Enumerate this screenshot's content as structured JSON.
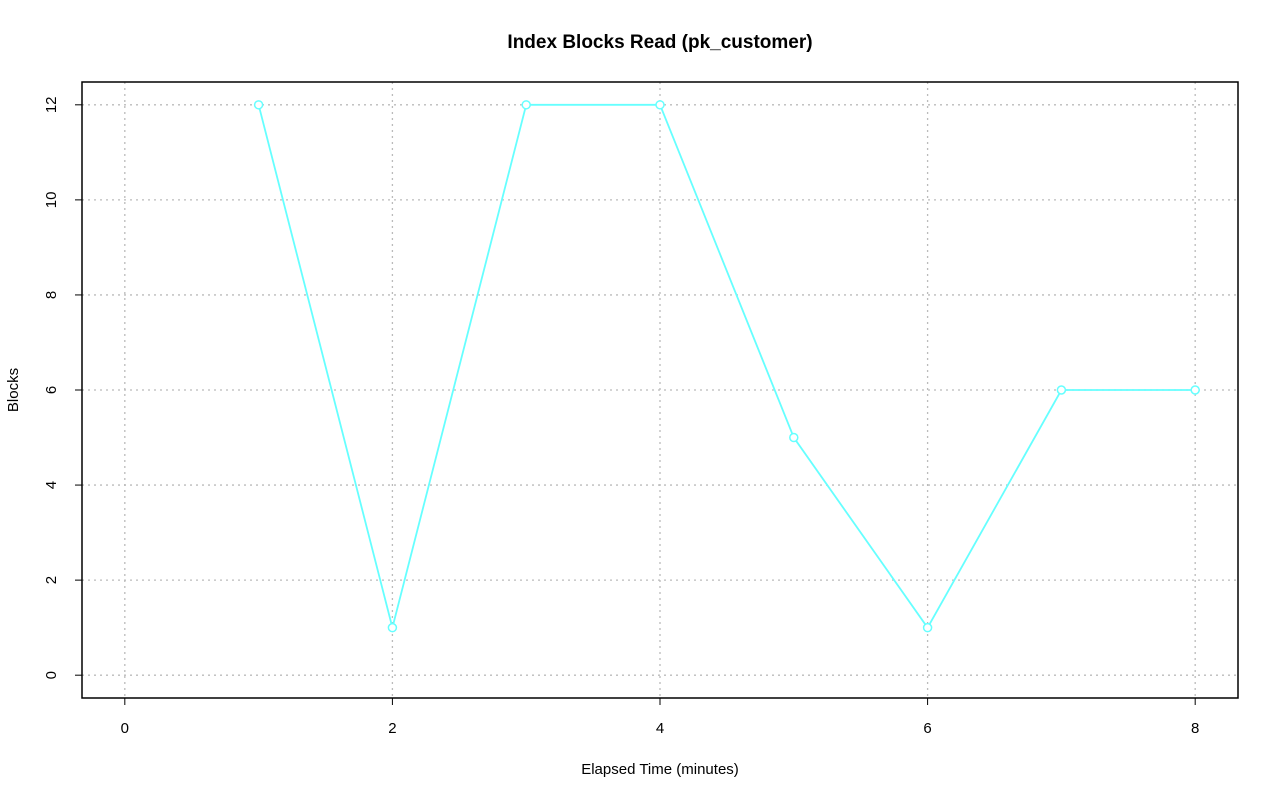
{
  "chart_data": {
    "type": "line",
    "title": "Index Blocks Read (pk_customer)",
    "x_label": "Elapsed Time (minutes)",
    "y_label": "Blocks",
    "x": [
      1,
      2,
      3,
      4,
      5,
      6,
      7,
      8
    ],
    "series": [
      {
        "color": "#66ffff",
        "values": [
          12,
          1,
          12,
          12,
          5,
          1,
          6,
          6
        ]
      }
    ],
    "xlim": [
      -0.32,
      8.32
    ],
    "xticks": [
      0,
      2,
      4,
      6,
      8
    ],
    "ylim": [
      -0.48,
      12.48
    ],
    "yticks": [
      0,
      2,
      4,
      6,
      8,
      10,
      12
    ],
    "grid": true
  }
}
